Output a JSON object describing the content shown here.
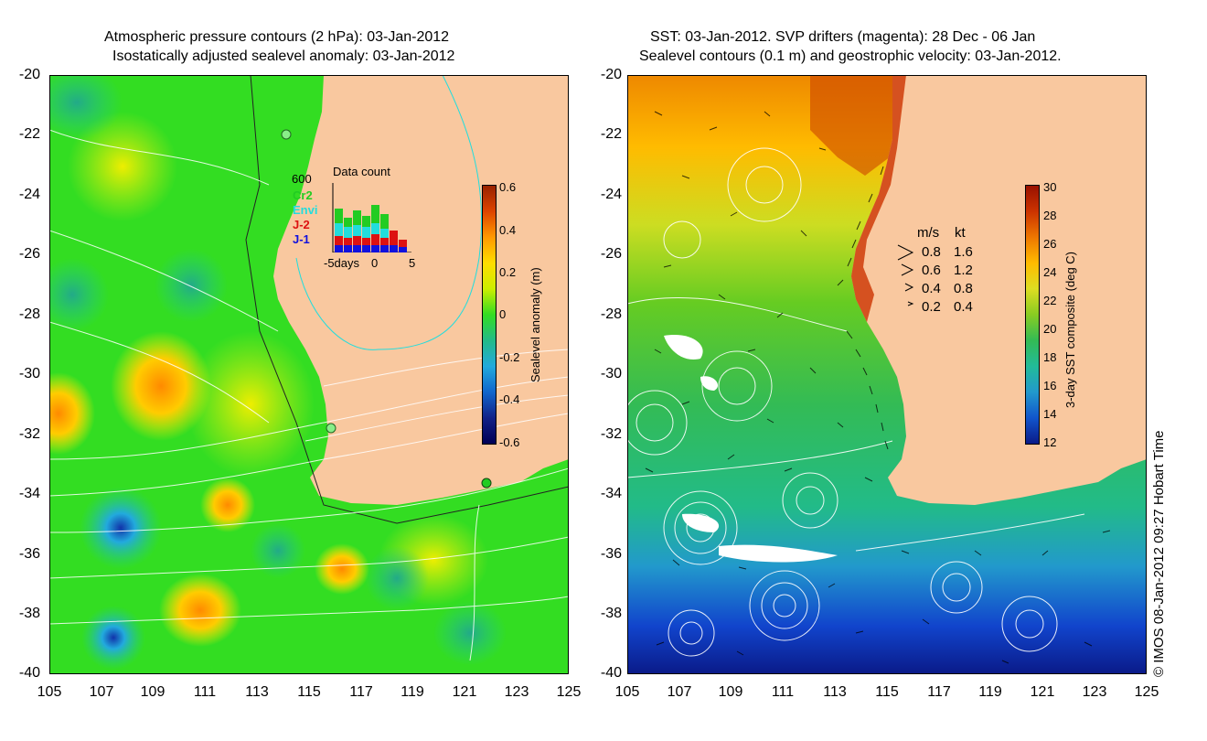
{
  "left_panel": {
    "title_line1": "Atmospheric pressure contours (2 hPa): 03-Jan-2012",
    "title_line2": "Isostatically adjusted sealevel anomaly: 03-Jan-2012",
    "colorbar_label": "Sealevel anomaly (m)",
    "colorbar_ticks": [
      "0.6",
      "0.4",
      "0.2",
      "0",
      "-0.2",
      "-0.4",
      "-0.6"
    ],
    "inset": {
      "title": "Data count",
      "max_label": "600",
      "series": [
        "Cr2",
        "Envi",
        "J-2",
        "J-1"
      ],
      "series_colors": [
        "#22cc22",
        "#22dddd",
        "#dd1111",
        "#1111dd"
      ],
      "x_labels": [
        "-5days",
        "0",
        "5"
      ]
    }
  },
  "right_panel": {
    "title_line1": "SST: 03-Jan-2012. SVP drifters (magenta): 28 Dec - 06 Jan",
    "title_line2": "Sealevel contours (0.1 m) and geostrophic velocity: 03-Jan-2012.",
    "colorbar_label": "3-day SST composite (deg C)",
    "colorbar_ticks": [
      "30",
      "28",
      "26",
      "24",
      "22",
      "20",
      "18",
      "16",
      "14",
      "12"
    ],
    "speed_legend": {
      "header_ms": "m/s",
      "header_kt": "kt",
      "rows": [
        {
          "ms": "0.8",
          "kt": "1.6"
        },
        {
          "ms": "0.6",
          "kt": "1.2"
        },
        {
          "ms": "0.4",
          "kt": "0.8"
        },
        {
          "ms": "0.2",
          "kt": "0.4"
        }
      ]
    }
  },
  "y_ticks": [
    "-20",
    "-22",
    "-24",
    "-26",
    "-28",
    "-30",
    "-32",
    "-34",
    "-36",
    "-38",
    "-40"
  ],
  "x_ticks": [
    "105",
    "107",
    "109",
    "111",
    "113",
    "115",
    "117",
    "119",
    "121",
    "123",
    "125"
  ],
  "credit": "© IMOS 08-Jan-2012 09:27 Hobart Time",
  "colors": {
    "land": "#f9c89f",
    "ocean_left": "#33dd22",
    "ocean_right": "#22cc66"
  }
}
